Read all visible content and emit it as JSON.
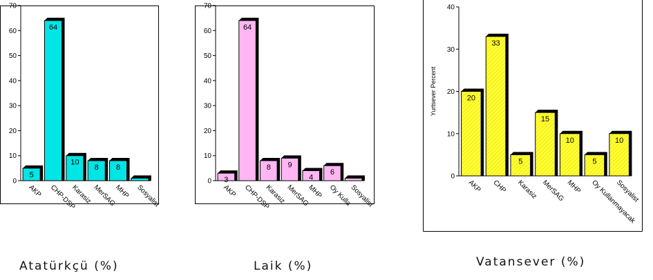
{
  "chart_data": [
    {
      "type": "bar",
      "categories": [
        "AKP",
        "CHP-DSP",
        "Karasiz",
        "MerSAG",
        "MHP",
        "Sosyalist"
      ],
      "values": [
        5,
        64,
        10,
        8,
        8,
        1
      ],
      "data_labels": [
        "5",
        "64",
        "10",
        "8",
        "8",
        ""
      ],
      "ylim": [
        0,
        70
      ],
      "yticks": [
        0,
        10,
        20,
        30,
        40,
        50,
        60,
        70
      ],
      "ylabel": "",
      "title": "Atatürkçü (%)",
      "color": "#00e5e5",
      "edge": "#000000",
      "legend": "none",
      "grid": false,
      "hatch": false
    },
    {
      "type": "bar",
      "categories": [
        "AKP",
        "CHP-DSP",
        "Karasiz",
        "MerSAG",
        "MHP",
        "Oy Kulla",
        "Sosyalist"
      ],
      "values": [
        3,
        64,
        8,
        9,
        4,
        6,
        1
      ],
      "data_labels": [
        "3",
        "64",
        "8",
        "9",
        "4",
        "6",
        ""
      ],
      "ylim": [
        0,
        70
      ],
      "yticks": [
        0,
        10,
        20,
        30,
        40,
        50,
        60,
        70
      ],
      "ylabel": "",
      "title": "Laik (%)",
      "color": "#ffb6f2",
      "edge": "#000000",
      "legend": "none",
      "grid": false,
      "hatch": false
    },
    {
      "type": "bar",
      "categories": [
        "AKP",
        "CHP",
        "Karasiz",
        "MerSAG",
        "MHP",
        "Oy Kullanmayacak",
        "Sosyalist"
      ],
      "values": [
        20,
        33,
        5,
        15,
        10,
        5,
        10
      ],
      "data_labels": [
        "20",
        "33",
        "5",
        "15",
        "10",
        "5",
        "10"
      ],
      "ylim": [
        0,
        40
      ],
      "yticks": [
        0,
        10,
        20,
        30,
        40
      ],
      "ylabel": "Yurtsever Percent",
      "title": "Vatansever (%)",
      "color": "#ffff33",
      "edge": "#000000",
      "legend": "none",
      "grid": false,
      "hatch": true
    }
  ]
}
